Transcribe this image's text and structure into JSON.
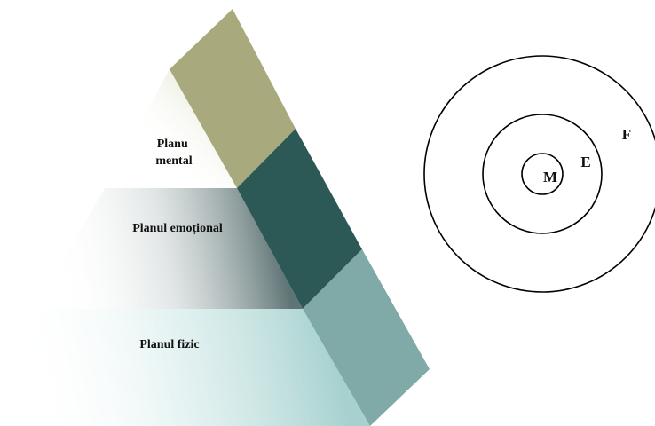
{
  "pyramid": {
    "levels": [
      {
        "id": "mental",
        "label_lines": [
          "Planu",
          "mental"
        ]
      },
      {
        "id": "emotional",
        "label_lines": [
          "Planul emoțional"
        ]
      },
      {
        "id": "physical",
        "label_lines": [
          "Planul fizic"
        ]
      }
    ],
    "side_colors": {
      "mental": "#A9A97E",
      "emotional": "#2C5856",
      "physical": "#7FAAA8"
    },
    "face_tints": {
      "mental": "#D7DEC0",
      "emotional": "#5F7475",
      "physical": "#A6D1CF"
    }
  },
  "circles": {
    "labels": {
      "outer": "F",
      "middle": "E",
      "inner": "M"
    }
  }
}
